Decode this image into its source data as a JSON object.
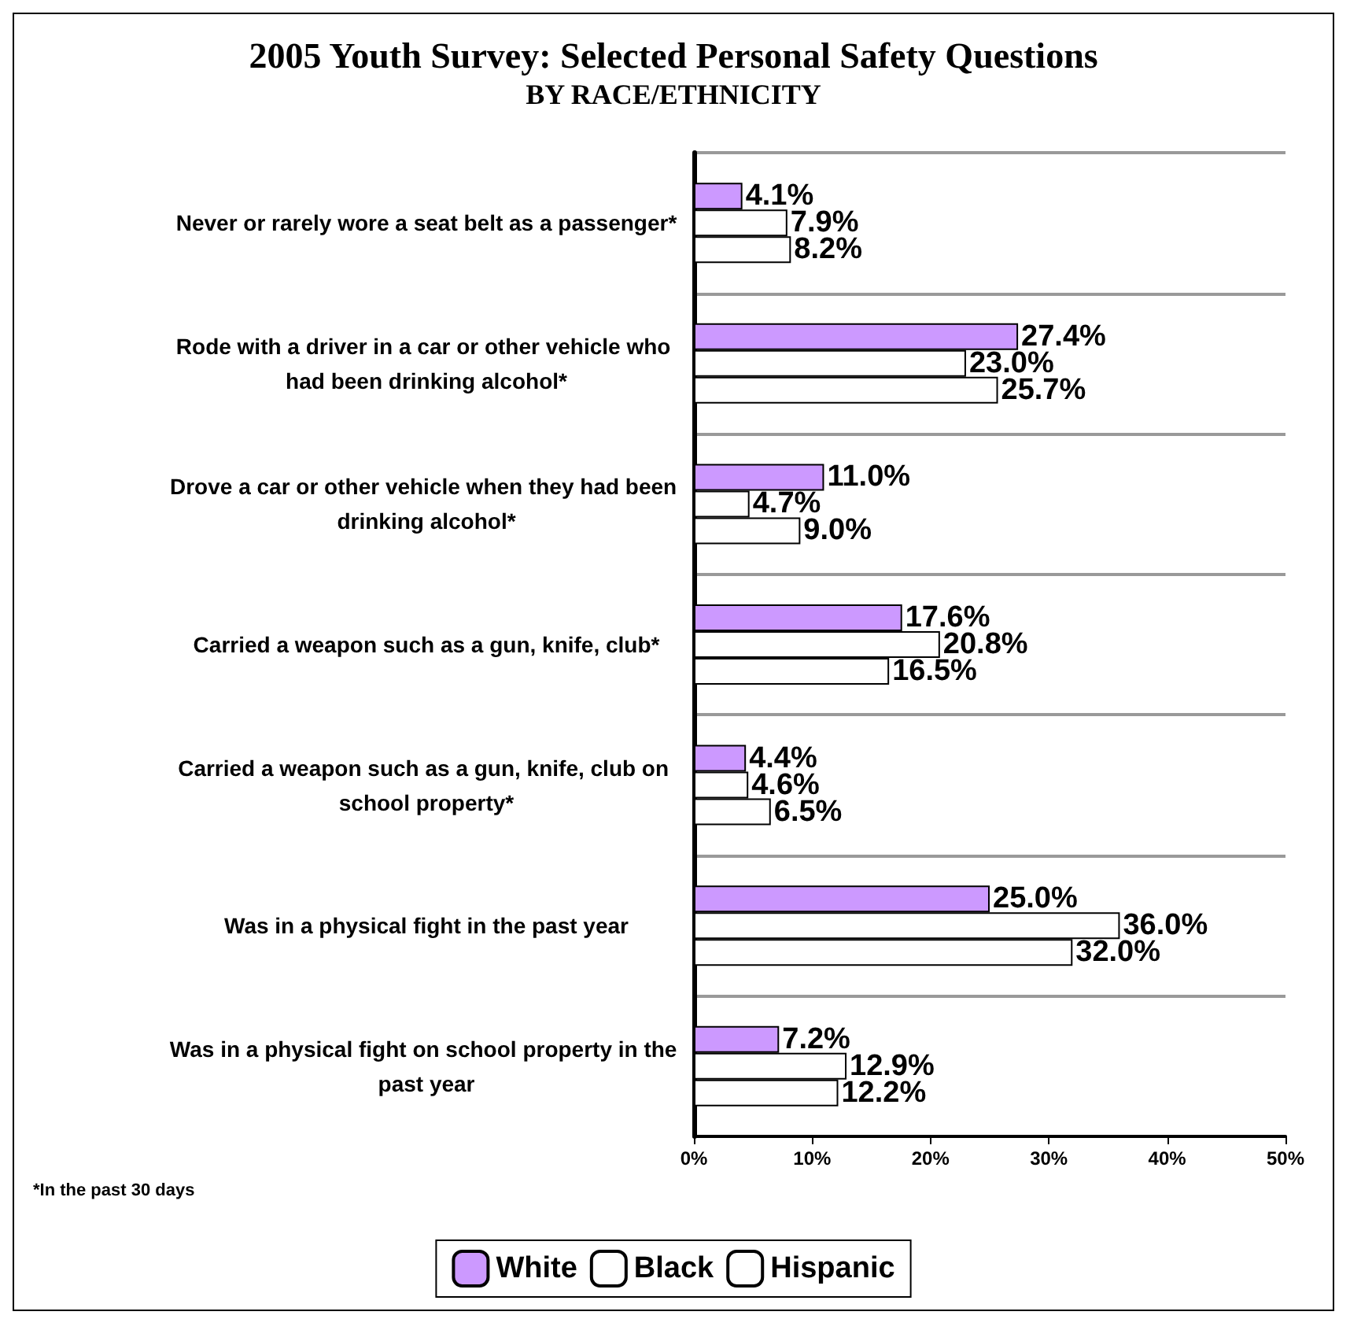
{
  "chart_data": {
    "type": "bar",
    "orientation": "horizontal",
    "title": "2005 Youth Survey: Selected Personal Safety Questions",
    "subtitle": "BY RACE/ETHNICITY",
    "categories": [
      "Never or rarely wore a seat belt as a passenger*",
      "Rode with a driver in a car or other vehicle who had been drinking alcohol*",
      "Drove a car or other vehicle when they had been drinking alcohol*",
      "Carried a weapon such as a gun, knife, club*",
      "Carried a weapon such as a gun, knife, club on school property*",
      "Was in a physical fight in the past year",
      "Was in a physical fight on school property in the past year"
    ],
    "series": [
      {
        "name": "White",
        "color": "#cc99ff",
        "values": [
          4.1,
          27.4,
          11.0,
          17.6,
          4.4,
          25.0,
          7.2
        ],
        "value_labels": [
          "4.1%",
          "27.4%",
          "11.0%",
          "17.6%",
          "4.4%",
          "25.0%",
          "7.2%"
        ]
      },
      {
        "name": "Black",
        "color": "#ffffff",
        "values": [
          7.9,
          23.0,
          4.7,
          20.8,
          4.6,
          36.0,
          12.9
        ],
        "value_labels": [
          "7.9%",
          "23.0%",
          "4.7%",
          "20.8%",
          "4.6%",
          "36.0%",
          "12.9%"
        ]
      },
      {
        "name": "Hispanic",
        "color": "#ffffff",
        "values": [
          8.2,
          25.7,
          9.0,
          16.5,
          6.5,
          32.0,
          12.2
        ],
        "value_labels": [
          "8.2%",
          "25.7%",
          "9.0%",
          "16.5%",
          "6.5%",
          "32.0%",
          "12.2%"
        ]
      }
    ],
    "xlim": [
      0,
      50
    ],
    "xticks": [
      {
        "value": 0,
        "label": "0%"
      },
      {
        "value": 10,
        "label": "10%"
      },
      {
        "value": 20,
        "label": "20%"
      },
      {
        "value": 30,
        "label": "30%"
      },
      {
        "value": 40,
        "label": "40%"
      },
      {
        "value": 50,
        "label": "50%"
      }
    ],
    "grid": "y",
    "legend": "bottom",
    "annotations": [
      "*In the past 30 days"
    ]
  }
}
